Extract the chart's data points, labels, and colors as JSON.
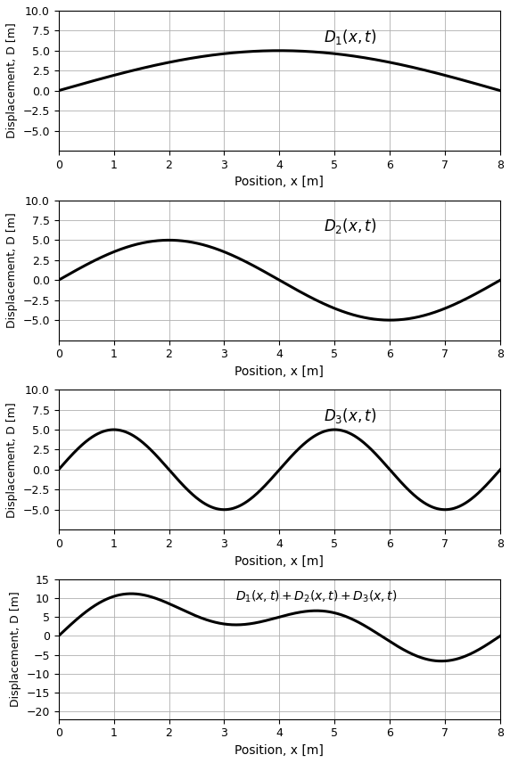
{
  "title1": "$D_1(x,t)$",
  "title2": "$D_2(x,t)$",
  "title3": "$D_3(x,t)$",
  "title4": "$D_1(x,t)+D_2(x,t)+D_3(x,t)$",
  "xlabel": "Position, x [m]",
  "ylabel": "Displacement, D [m]",
  "xmin": 0,
  "xmax": 8,
  "ylim1": [
    -7.5,
    10.0
  ],
  "ylim2": [
    -7.5,
    10.0
  ],
  "ylim3": [
    -7.5,
    10.0
  ],
  "ylim4": [
    -22,
    15
  ],
  "yticks1": [
    -5.0,
    -2.5,
    0.0,
    2.5,
    5.0,
    7.5,
    10.0
  ],
  "yticks2": [
    -5.0,
    -2.5,
    0.0,
    2.5,
    5.0,
    7.5,
    10.0
  ],
  "yticks3": [
    -5.0,
    -2.5,
    0.0,
    2.5,
    5.0,
    7.5,
    10.0
  ],
  "yticks4": [
    -20,
    -15,
    -10,
    -5,
    0,
    5,
    10,
    15
  ],
  "A1": 5.0,
  "k1": 0.39269908169872414,
  "phi1": 0.0,
  "A2": 5.0,
  "k2": 0.7853981633974483,
  "phi2": 0.0,
  "A3": 5.0,
  "k3": 1.5707963267948966,
  "phi3": 0.0,
  "line_color": "#000000",
  "line_width": 2.2,
  "bg_color": "#ffffff",
  "grid_color": "#b0b0b0",
  "fig_width": 5.72,
  "fig_height": 8.56
}
